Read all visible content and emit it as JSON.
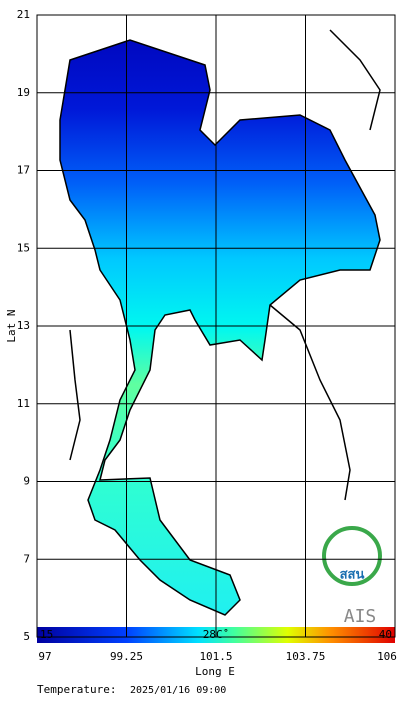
{
  "map": {
    "title_label": "Temperature:",
    "timestamp": "2025/01/16 09:00",
    "x_label": "Long E",
    "y_label": "Lat N",
    "xlim": [
      97,
      106
    ],
    "xticks": [
      97,
      99.25,
      101.5,
      103.75,
      106
    ],
    "ylim": [
      5,
      21
    ],
    "yticks": [
      5,
      7,
      9,
      11,
      13,
      15,
      17,
      19,
      21
    ],
    "colorbar": {
      "min": 15,
      "max": 40,
      "mid_label": "28C˚"
    },
    "logos": [
      "สสน",
      "AIS"
    ]
  }
}
